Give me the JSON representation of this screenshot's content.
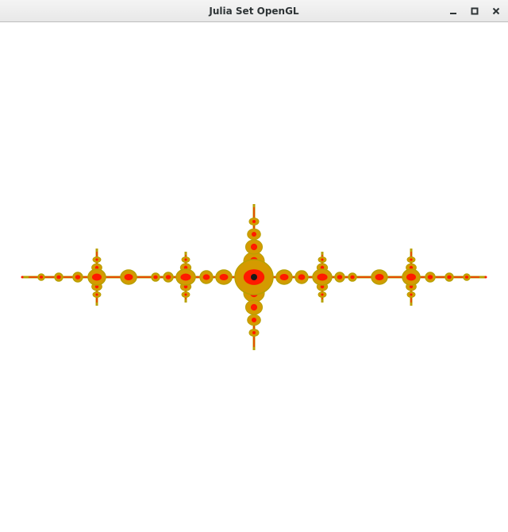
{
  "window": {
    "title": "Julia Set OpenGL",
    "controls": {
      "minimize_icon": "minimize-icon",
      "maximize_icon": "maximize-icon",
      "close_icon": "close-icon"
    }
  },
  "fractal": {
    "colors": {
      "outer": "#b8a000",
      "mid": "#d49a00",
      "inner": "#ff1a00",
      "core": "#1a1a1a",
      "background": "#ffffff"
    }
  }
}
